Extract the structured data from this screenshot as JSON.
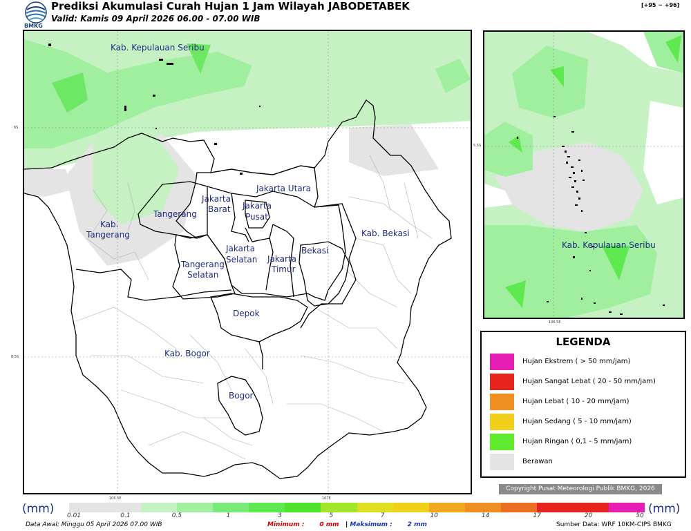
{
  "header": {
    "logo_text": "BMKG",
    "title": "Prediksi Akumulasi Curah Hujan 1 Jam Wilayah JABODETABEK",
    "valid": "Valid: Kamis 09 April 2026 06.00 - 07.00 WIB",
    "range": "[+95 ~ +96]"
  },
  "map": {
    "labels": {
      "kepulauan_seribu": "Kab. Kepulauan Seribu",
      "jakarta_utara": "Jakarta Utara",
      "jakarta_barat_1": "Jakarta",
      "jakarta_barat_2": "Barat",
      "jakarta_pusat_1": "Jakarta",
      "jakarta_pusat_2": "Pusat",
      "tangerang": "Tangerang",
      "kab_tangerang_1": "Kab.",
      "kab_tangerang_2": "Tangerang",
      "jakarta_selatan_1": "Jakarta",
      "jakarta_selatan_2": "Selatan",
      "jakarta_timur_1": "Jakarta",
      "jakarta_timur_2": "Timur",
      "bekasi": "Bekasi",
      "kab_bekasi": "Kab. Bekasi",
      "tangsel_1": "Tangerang",
      "tangsel_2": "Selatan",
      "depok": "Depok",
      "kab_bogor": "Kab. Bogor",
      "bogor": "Bogor"
    },
    "ticks": {
      "lat_6s": "6S",
      "lat_65s": "6.5S",
      "lon_1065e": "106.5E",
      "lon_107e": "107E"
    }
  },
  "inset": {
    "label": "Kab. Kepulauan Seribu",
    "tick_lat": "5.5S",
    "tick_lon": "106.5E"
  },
  "legend": {
    "title": "LEGENDA",
    "items": [
      {
        "label": "Hujan Ekstrem ( > 50 mm/jam)",
        "color": "#e61eb4"
      },
      {
        "label": "Hujan Sangat Lebat ( 20 - 50 mm/jam)",
        "color": "#e8221c"
      },
      {
        "label": "Hujan Lebat ( 10 - 20 mm/jam)",
        "color": "#ef8f1f"
      },
      {
        "label": "Hujan Sedang ( 5 - 10 mm/jam)",
        "color": "#f0d018"
      },
      {
        "label": "Hujan Ringan ( 0,1 - 5 mm/jam)",
        "color": "#5fea2d"
      },
      {
        "label": "Berawan",
        "color": "#e4e4e4"
      }
    ]
  },
  "copyright": "Copyright Pusat Meteorologi Publik BMKG, 2026",
  "scale": {
    "unit": "(mm)",
    "colors": [
      "#e4e4e4",
      "#e4e4e4",
      "#c6f2c3",
      "#9fef9f",
      "#7aeb78",
      "#5ee94f",
      "#4fe32e",
      "#a3e52a",
      "#e0de21",
      "#f0d018",
      "#f0a81f",
      "#ef8f1f",
      "#ec6e22",
      "#e8221c",
      "#e8221c",
      "#e61eb4"
    ],
    "labels": [
      "0.01",
      "0.1",
      "0.5",
      "1",
      "3",
      "5",
      "7",
      "10",
      "14",
      "17",
      "20",
      "50"
    ]
  },
  "footer": {
    "data_awal": "Data Awal: Minggu 05 April 2026 07.00 WIB",
    "minimum_label": "Minimum :",
    "minimum_value": "0 mm",
    "separator": "|",
    "maximum_label": "Maksimum :",
    "maximum_value": "2 mm",
    "source": "Sumber Data: WRF 10KM-CIPS BMKG"
  }
}
